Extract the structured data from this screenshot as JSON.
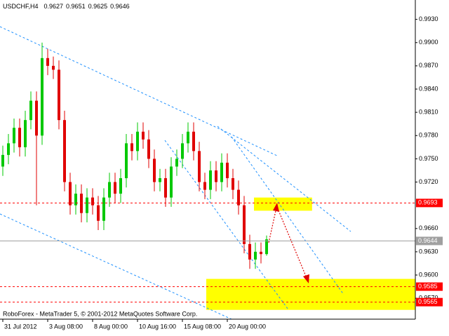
{
  "chart_data": {
    "type": "candlestick",
    "symbol": "USDCHF,H4",
    "footer": "RoboForex - MetaTrader 5, © 2001-2012 MetaQuotes Software Corp.",
    "up_color": "#00c800",
    "down_color": "#e00000",
    "open": [
      0.974,
      0.9755,
      0.977,
      0.979,
      0.9765,
      0.98,
      0.9825,
      0.978,
      0.988,
      0.987,
      0.9865,
      0.98,
      0.972,
      0.969,
      0.9705,
      0.968,
      0.97,
      0.969,
      0.967,
      0.97,
      0.972,
      0.9705,
      0.9725,
      0.977,
      0.976,
      0.9785,
      0.9775,
      0.975,
      0.972,
      0.9725,
      0.97,
      0.974,
      0.975,
      0.977,
      0.9785,
      0.976,
      0.972,
      0.971,
      0.9735,
      0.972,
      0.9745,
      0.9725,
      0.971,
      0.969,
      0.964,
      0.962,
      0.963,
      0.9627
    ],
    "high": [
      0.9767,
      0.9782,
      0.9802,
      0.9802,
      0.9812,
      0.9837,
      0.9837,
      0.99,
      0.9892,
      0.9882,
      0.9877,
      0.9812,
      0.9732,
      0.9717,
      0.9717,
      0.9712,
      0.9712,
      0.9702,
      0.9712,
      0.9732,
      0.9732,
      0.9737,
      0.9782,
      0.9782,
      0.9797,
      0.9797,
      0.9787,
      0.9762,
      0.9737,
      0.9737,
      0.9752,
      0.9762,
      0.9782,
      0.9797,
      0.9797,
      0.9772,
      0.9732,
      0.9747,
      0.9747,
      0.9757,
      0.9757,
      0.9737,
      0.9722,
      0.9702,
      0.9652,
      0.9642,
      0.9642,
      0.9651
    ],
    "low": [
      0.9728,
      0.9743,
      0.9758,
      0.9753,
      0.9753,
      0.9788,
      0.969,
      0.9768,
      0.9858,
      0.9853,
      0.9788,
      0.9708,
      0.9678,
      0.9678,
      0.9668,
      0.9668,
      0.9678,
      0.9658,
      0.9658,
      0.9688,
      0.9693,
      0.9693,
      0.9713,
      0.9748,
      0.9748,
      0.9763,
      0.9738,
      0.9708,
      0.9708,
      0.9688,
      0.9688,
      0.9728,
      0.9738,
      0.9758,
      0.9748,
      0.9708,
      0.9698,
      0.9698,
      0.9708,
      0.9708,
      0.9713,
      0.9698,
      0.9678,
      0.9628,
      0.9608,
      0.9608,
      0.9615,
      0.9625
    ],
    "close": [
      0.9755,
      0.977,
      0.979,
      0.9765,
      0.98,
      0.9825,
      0.978,
      0.988,
      0.987,
      0.9865,
      0.98,
      0.972,
      0.969,
      0.9705,
      0.968,
      0.97,
      0.969,
      0.967,
      0.97,
      0.972,
      0.9705,
      0.9725,
      0.977,
      0.976,
      0.9785,
      0.9775,
      0.975,
      0.972,
      0.9725,
      0.97,
      0.974,
      0.975,
      0.977,
      0.9785,
      0.976,
      0.972,
      0.971,
      0.9735,
      0.972,
      0.9745,
      0.9725,
      0.971,
      0.969,
      0.964,
      0.962,
      0.963,
      0.9627,
      0.9646
    ],
    "xlim": [
      -0.5,
      73.5
    ],
    "ylim": [
      0.9543,
      0.9955
    ],
    "xticks": [
      {
        "value": 0,
        "label": "31 Jul 2012"
      },
      {
        "value": 8,
        "label": "3 Aug 08:00"
      },
      {
        "value": 16,
        "label": "8 Aug 00:00"
      },
      {
        "value": 24,
        "label": "10 Aug 16:00"
      },
      {
        "value": 32,
        "label": "15 Aug 08:00"
      },
      {
        "value": 40,
        "label": "20 Aug 00:00"
      }
    ],
    "yticks": [
      {
        "value": 0.993,
        "label": "0.9930"
      },
      {
        "value": 0.99,
        "label": "0.9900"
      },
      {
        "value": 0.987,
        "label": "0.9870"
      },
      {
        "value": 0.984,
        "label": "0.9840"
      },
      {
        "value": 0.981,
        "label": "0.9810"
      },
      {
        "value": 0.978,
        "label": "0.9780"
      },
      {
        "value": 0.975,
        "label": "0.9750"
      },
      {
        "value": 0.972,
        "label": "0.9720"
      },
      {
        "value": 0.966,
        "label": "0.9660"
      },
      {
        "value": 0.963,
        "label": "0.9630"
      },
      {
        "value": 0.96,
        "label": "0.9600"
      },
      {
        "value": 0.957,
        "label": "0.9570"
      }
    ],
    "zones": [
      {
        "x": [
          44.75,
          55.1
        ],
        "y": [
          0.9683,
          0.97
        ],
        "color": "#ffff00"
      },
      {
        "x": [
          36.25,
          73.5
        ],
        "y": [
          0.9555,
          0.9595
        ],
        "color": "#ffff00"
      }
    ],
    "current_price": {
      "value": 0.9644,
      "color": "#a0a0a0"
    },
    "levels": [
      {
        "value": 0.9693,
        "color": "#ff0000"
      },
      {
        "value": 0.9585,
        "color": "#ff0000"
      },
      {
        "value": 0.9565,
        "color": "#ff0000"
      }
    ]
  }
}
